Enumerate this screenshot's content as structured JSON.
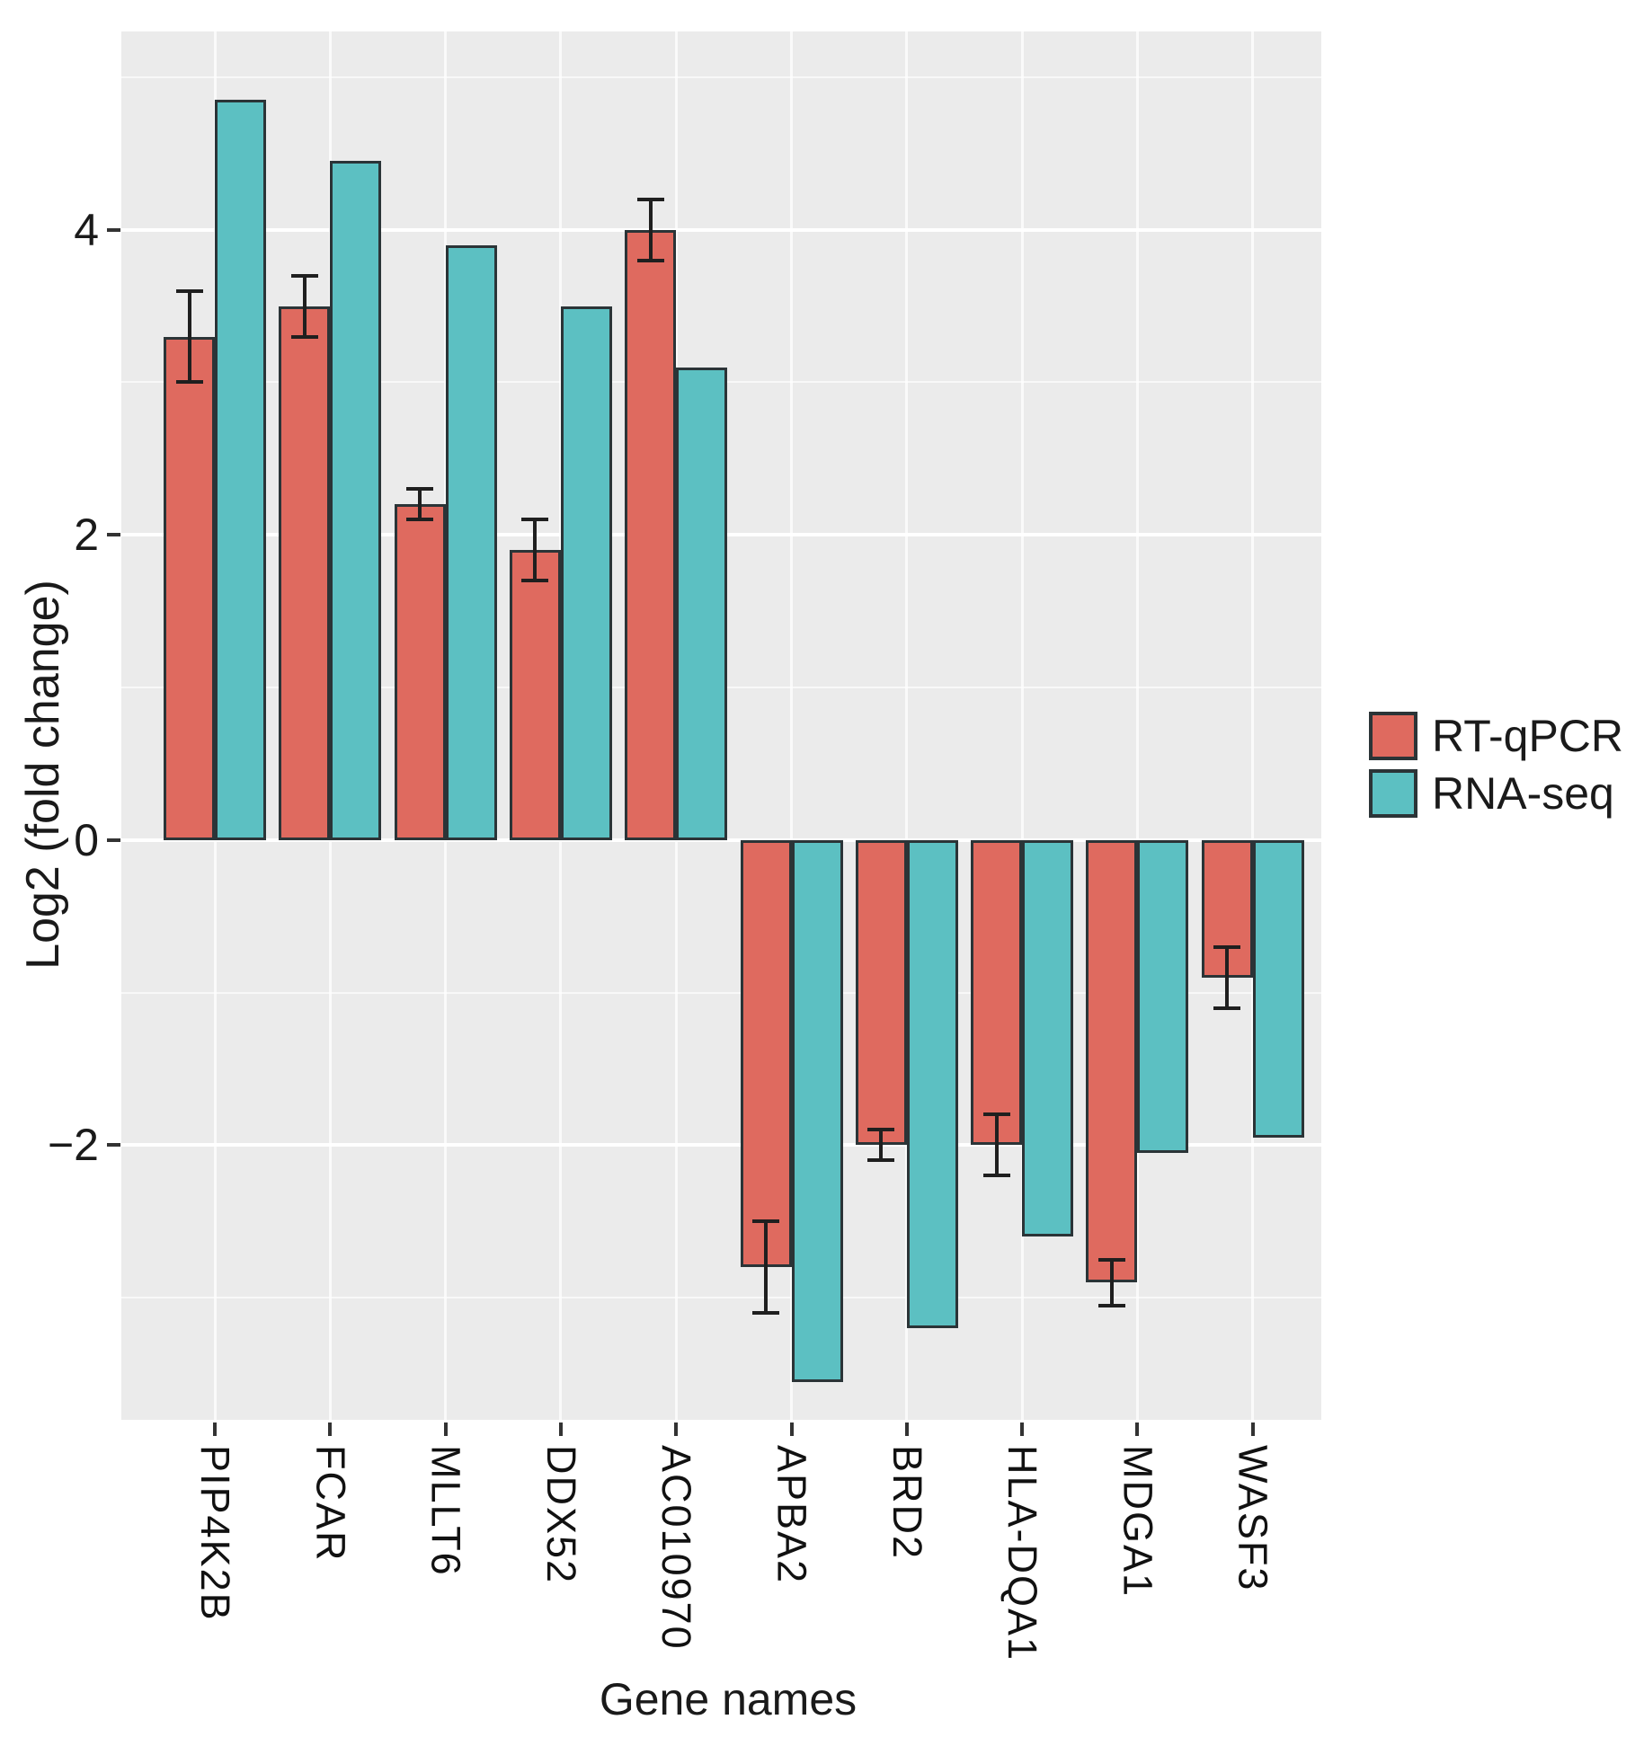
{
  "chart_data": {
    "type": "bar",
    "title": "",
    "xlabel": "Gene names",
    "ylabel": "Log2 (fold change)",
    "categories": [
      "PIP4K2B",
      "FCAR",
      "MLLT6",
      "DDX52",
      "AC010970",
      "APBA2",
      "BRD2",
      "HLA-DQA1",
      "MDGA1",
      "WASF3"
    ],
    "series": [
      {
        "name": "RT-qPCR",
        "color": "#df6a5f",
        "values": [
          3.3,
          3.5,
          2.2,
          1.9,
          4.0,
          -2.8,
          -2.0,
          -2.0,
          -2.9,
          -0.9
        ],
        "errors": [
          0.3,
          0.2,
          0.1,
          0.2,
          0.2,
          0.3,
          0.1,
          0.2,
          0.15,
          0.2
        ]
      },
      {
        "name": "RNA-seq",
        "color": "#5cc0c2",
        "values": [
          4.85,
          4.45,
          3.9,
          3.5,
          3.1,
          -3.55,
          -3.2,
          -2.6,
          -2.05,
          -1.95
        ],
        "errors": null
      }
    ],
    "ylim": [
      -3.8,
      5.3
    ],
    "yticks": {
      "major": [
        {
          "v": 4,
          "label": "4"
        },
        {
          "v": 2,
          "label": "2"
        },
        {
          "v": 0,
          "label": "0"
        },
        {
          "v": -2,
          "label": "−2"
        }
      ],
      "minor": [
        5,
        3,
        1,
        -1,
        -3
      ]
    },
    "grid": "on",
    "legend_position": "right",
    "colors": {
      "panel_background": "#ebebeb",
      "major_gridline": "#ffffff",
      "minor_gridline": "#ffffff",
      "bar_outline": "#2b3437",
      "errorbar": "#1f1f1f",
      "text": "#1a1a1a",
      "rt_qpcr_fill": "#df6a5f",
      "rna_seq_fill": "#5cc0c2"
    }
  }
}
